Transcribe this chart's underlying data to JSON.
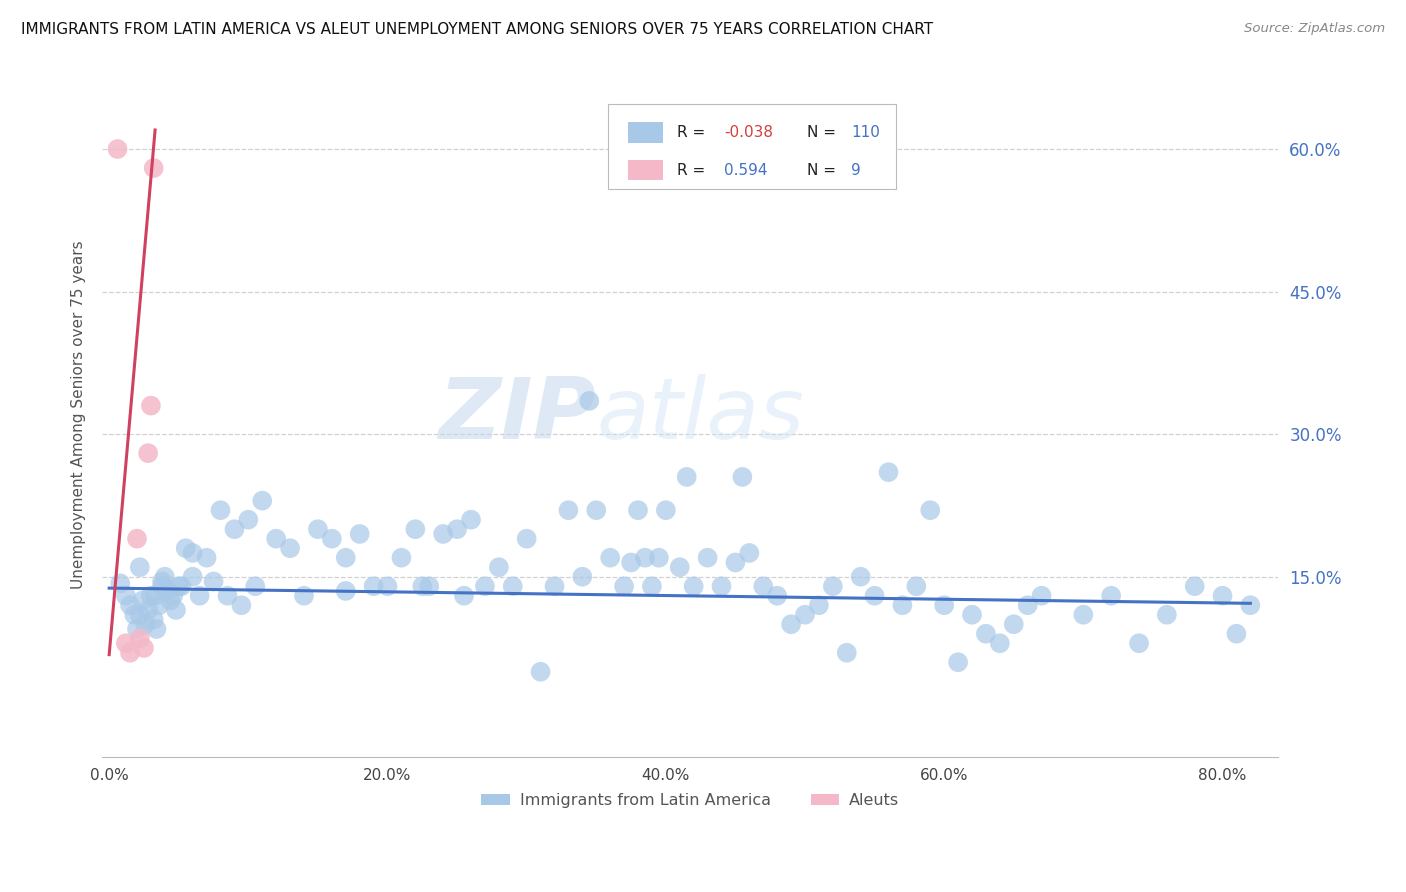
{
  "title": "IMMIGRANTS FROM LATIN AMERICA VS ALEUT UNEMPLOYMENT AMONG SENIORS OVER 75 YEARS CORRELATION CHART",
  "source": "Source: ZipAtlas.com",
  "ylabel": "Unemployment Among Seniors over 75 years",
  "x_tick_labels": [
    "0.0%",
    "20.0%",
    "40.0%",
    "60.0%",
    "80.0%"
  ],
  "x_tick_vals": [
    0.0,
    0.2,
    0.4,
    0.6,
    0.8
  ],
  "y_tick_labels_right": [
    "15.0%",
    "30.0%",
    "45.0%",
    "60.0%"
  ],
  "y_tick_vals": [
    0.15,
    0.3,
    0.45,
    0.6
  ],
  "xlim": [
    -0.005,
    0.84
  ],
  "ylim": [
    -0.04,
    0.68
  ],
  "legend_label_1": "Immigrants from Latin America",
  "legend_label_2": "Aleuts",
  "R1": "-0.038",
  "N1": "110",
  "R2": "0.594",
  "N2": "9",
  "color_blue": "#a8c8e8",
  "color_blue_dark": "#4472c4",
  "color_pink": "#f4b8c8",
  "color_pink_dark": "#d04060",
  "watermark_zip": "ZIP",
  "watermark_atlas": "atlas",
  "background_color": "#ffffff",
  "grid_color": "#cccccc",
  "blue_scatter_x": [
    0.008,
    0.012,
    0.015,
    0.018,
    0.02,
    0.022,
    0.024,
    0.026,
    0.028,
    0.03,
    0.032,
    0.034,
    0.036,
    0.038,
    0.04,
    0.042,
    0.044,
    0.046,
    0.048,
    0.05,
    0.055,
    0.06,
    0.065,
    0.07,
    0.075,
    0.08,
    0.085,
    0.09,
    0.095,
    0.1,
    0.105,
    0.11,
    0.12,
    0.13,
    0.14,
    0.15,
    0.16,
    0.17,
    0.18,
    0.19,
    0.2,
    0.21,
    0.22,
    0.225,
    0.23,
    0.24,
    0.25,
    0.255,
    0.26,
    0.27,
    0.28,
    0.29,
    0.3,
    0.31,
    0.32,
    0.33,
    0.34,
    0.35,
    0.36,
    0.37,
    0.38,
    0.385,
    0.39,
    0.395,
    0.4,
    0.41,
    0.42,
    0.43,
    0.44,
    0.45,
    0.46,
    0.47,
    0.48,
    0.49,
    0.5,
    0.51,
    0.52,
    0.53,
    0.54,
    0.55,
    0.56,
    0.57,
    0.58,
    0.59,
    0.6,
    0.61,
    0.62,
    0.63,
    0.64,
    0.65,
    0.66,
    0.67,
    0.7,
    0.72,
    0.74,
    0.76,
    0.78,
    0.8,
    0.81,
    0.82,
    0.345,
    0.455,
    0.375,
    0.415,
    0.033,
    0.022,
    0.06,
    0.038,
    0.052,
    0.17
  ],
  "blue_scatter_y": [
    0.143,
    0.13,
    0.12,
    0.11,
    0.095,
    0.11,
    0.125,
    0.1,
    0.115,
    0.13,
    0.105,
    0.095,
    0.12,
    0.14,
    0.15,
    0.135,
    0.125,
    0.13,
    0.115,
    0.14,
    0.18,
    0.175,
    0.13,
    0.17,
    0.145,
    0.22,
    0.13,
    0.2,
    0.12,
    0.21,
    0.14,
    0.23,
    0.19,
    0.18,
    0.13,
    0.2,
    0.19,
    0.17,
    0.195,
    0.14,
    0.14,
    0.17,
    0.2,
    0.14,
    0.14,
    0.195,
    0.2,
    0.13,
    0.21,
    0.14,
    0.16,
    0.14,
    0.19,
    0.05,
    0.14,
    0.22,
    0.15,
    0.22,
    0.17,
    0.14,
    0.22,
    0.17,
    0.14,
    0.17,
    0.22,
    0.16,
    0.14,
    0.17,
    0.14,
    0.165,
    0.175,
    0.14,
    0.13,
    0.1,
    0.11,
    0.12,
    0.14,
    0.07,
    0.15,
    0.13,
    0.26,
    0.12,
    0.14,
    0.22,
    0.12,
    0.06,
    0.11,
    0.09,
    0.08,
    0.1,
    0.12,
    0.13,
    0.11,
    0.13,
    0.08,
    0.11,
    0.14,
    0.13,
    0.09,
    0.12,
    0.335,
    0.255,
    0.165,
    0.255,
    0.13,
    0.16,
    0.15,
    0.145,
    0.14,
    0.135
  ],
  "pink_scatter_x": [
    0.006,
    0.012,
    0.015,
    0.02,
    0.022,
    0.025,
    0.028,
    0.032,
    0.03
  ],
  "pink_scatter_y": [
    0.6,
    0.08,
    0.07,
    0.19,
    0.085,
    0.075,
    0.28,
    0.58,
    0.33
  ],
  "blue_trendline_x": [
    0.0,
    0.82
  ],
  "blue_trendline_y": [
    0.138,
    0.122
  ],
  "pink_trendline_x": [
    0.0,
    0.033
  ],
  "pink_trendline_y": [
    0.068,
    0.62
  ]
}
